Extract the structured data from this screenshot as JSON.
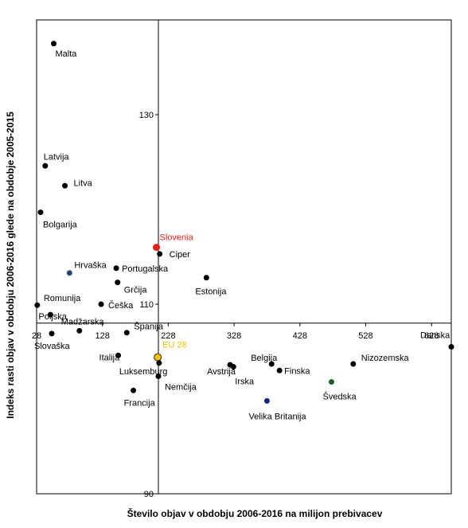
{
  "chart_data": {
    "type": "scatter",
    "title": "",
    "xlabel": "Število objav  v obdobju 2006-2016 na milijon prebivacev",
    "ylabel": "Indeks rasti objav  v obdobju 2006-2016 glede na obdobje 2005-2015",
    "xlim": [
      28,
      658
    ],
    "ylim": [
      90,
      140
    ],
    "x_cross": 213,
    "y_cross": 108,
    "x_ticks": [
      28,
      128,
      228,
      328,
      428,
      528,
      628
    ],
    "y_ticks": [
      90,
      110,
      130
    ],
    "grid": false,
    "points": [
      {
        "name": "Malta",
        "x": 54,
        "y": 137.5,
        "color": "#000000"
      },
      {
        "name": "Latvija",
        "x": 41,
        "y": 124.6,
        "color": "#000000"
      },
      {
        "name": "Litva",
        "x": 71,
        "y": 122.5,
        "color": "#000000"
      },
      {
        "name": "Bolgarija",
        "x": 34,
        "y": 119.7,
        "color": "#000000"
      },
      {
        "name": "Slovenia",
        "x": 210,
        "y": 116.0,
        "color": "#e3201b"
      },
      {
        "name": "Ciper",
        "x": 215,
        "y": 115.3,
        "color": "#000000"
      },
      {
        "name": "Hrvaška",
        "x": 78,
        "y": 113.3,
        "color": "#24406b"
      },
      {
        "name": "Portugalska",
        "x": 149,
        "y": 113.8,
        "color": "#000000"
      },
      {
        "name": "Estonija",
        "x": 286,
        "y": 112.8,
        "color": "#000000"
      },
      {
        "name": "Grčija",
        "x": 151,
        "y": 112.3,
        "color": "#000000"
      },
      {
        "name": "Romunija",
        "x": 29,
        "y": 109.9,
        "color": "#000000"
      },
      {
        "name": "Češka",
        "x": 126,
        "y": 110.0,
        "color": "#000000"
      },
      {
        "name": "Poljska",
        "x": 49,
        "y": 108.9,
        "color": "#000000"
      },
      {
        "name": "Madžarska",
        "x": 93,
        "y": 107.2,
        "color": "#000000"
      },
      {
        "name": "Slovaška",
        "x": 51,
        "y": 106.9,
        "color": "#000000"
      },
      {
        "name": "Španija",
        "x": 165,
        "y": 107.0,
        "color": "#000000"
      },
      {
        "name": "Italija",
        "x": 152,
        "y": 104.6,
        "color": "#000000"
      },
      {
        "name": "EU 28",
        "x": 212,
        "y": 104.4,
        "color": "#f5c000"
      },
      {
        "name": "Luksemburg",
        "x": 214,
        "y": 103.8,
        "color": "#000000"
      },
      {
        "name": "Nemčija",
        "x": 213,
        "y": 102.4,
        "color": "#000000"
      },
      {
        "name": "Francija",
        "x": 175,
        "y": 100.9,
        "color": "#000000"
      },
      {
        "name": "Avstrija",
        "x": 322,
        "y": 103.6,
        "color": "#000000"
      },
      {
        "name": "Irska",
        "x": 327,
        "y": 103.4,
        "color": "#000000"
      },
      {
        "name": "Belgija",
        "x": 385,
        "y": 103.7,
        "color": "#000000"
      },
      {
        "name": "Finska",
        "x": 397,
        "y": 103.0,
        "color": "#000000"
      },
      {
        "name": "Nizozemska",
        "x": 509,
        "y": 103.7,
        "color": "#000000"
      },
      {
        "name": "Švedska",
        "x": 476,
        "y": 101.8,
        "color": "#1f5c30"
      },
      {
        "name": "Velika Britanija",
        "x": 378,
        "y": 99.8,
        "color": "#1a237e"
      },
      {
        "name": "Danska",
        "x": 658,
        "y": 105.5,
        "color": "#000000"
      }
    ]
  }
}
